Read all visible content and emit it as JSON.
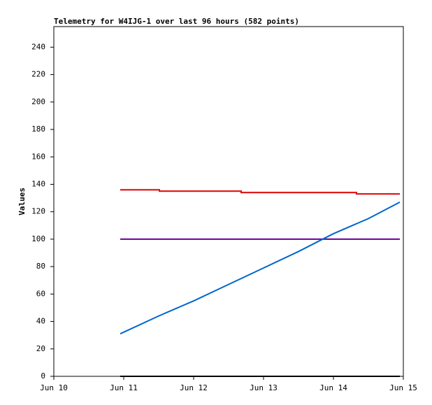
{
  "chart_data": {
    "type": "line",
    "title": "Telemetry for W4IJG-1 over last 96 hours (582 points)",
    "y_label": "Values",
    "xlim": [
      10,
      15
    ],
    "xticks": [
      {
        "value": 10,
        "label": "Jun 10"
      },
      {
        "value": 11,
        "label": "Jun 11"
      },
      {
        "value": 12,
        "label": "Jun 12"
      },
      {
        "value": 13,
        "label": "Jun 13"
      },
      {
        "value": 14,
        "label": "Jun 14"
      },
      {
        "value": 15,
        "label": "Jun 15"
      }
    ],
    "ylim": [
      0,
      255
    ],
    "yticks": [
      0,
      20,
      40,
      60,
      80,
      100,
      120,
      140,
      160,
      180,
      200,
      220,
      240
    ],
    "grid": false,
    "series": [
      {
        "color": "#dd0000",
        "x": [
          10.95,
          11.51,
          11.51,
          12.68,
          12.68,
          14.33,
          14.33,
          14.95
        ],
        "values": [
          136,
          136,
          135,
          135,
          134,
          134,
          133,
          133
        ]
      },
      {
        "color": "#660099",
        "x": [
          10.95,
          14.95
        ],
        "values": [
          100,
          100
        ]
      },
      {
        "color": "#0066cc",
        "x": [
          10.95,
          11.5,
          12,
          12.5,
          13,
          13.5,
          14,
          14.5,
          14.95
        ],
        "values": [
          31,
          44,
          55,
          67,
          79,
          91,
          104,
          115,
          127
        ]
      },
      {
        "color": "#000000",
        "x": [
          10.95,
          14.95
        ],
        "values": [
          0,
          0
        ]
      }
    ]
  }
}
